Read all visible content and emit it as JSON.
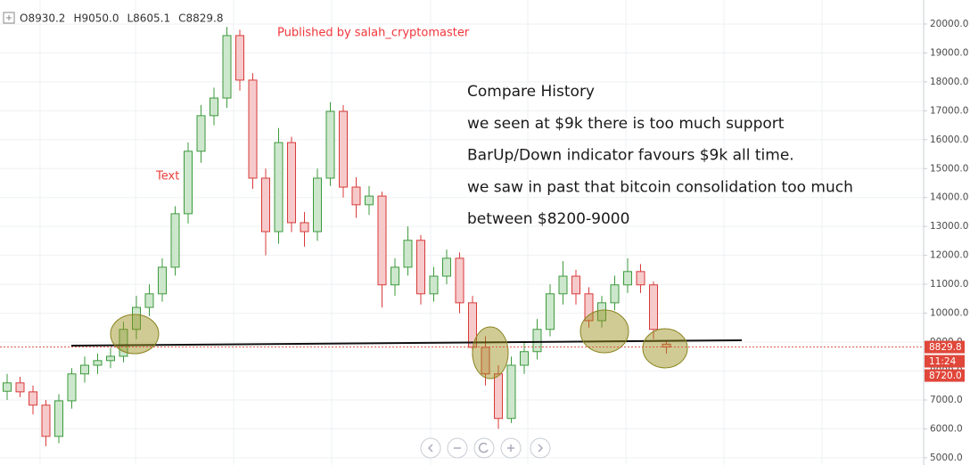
{
  "chart_data": {
    "type": "candlestick",
    "ohlc_legend": [
      "O8930.2",
      "H9050.0",
      "L8605.1",
      "C8829.8"
    ],
    "published": "Published by salah_cryptomaster",
    "annotations": [
      "Compare History",
      "we seen at $9k there is too much support",
      "BarUp/Down indicator favours $9k all time.",
      "we saw in past that bitcoin consolidation too much",
      "between $8200-9000"
    ],
    "marker_text": "Text",
    "price_tags": [
      "8829.8",
      "11:24",
      "8720.0"
    ],
    "up_color": "#3d9a3d",
    "down_color": "#d83a3a",
    "open": [
      7300,
      7590,
      7280,
      6820,
      5740,
      6970,
      7900,
      8200,
      8360,
      8510,
      9440,
      10200,
      10670,
      11590,
      13440,
      15600,
      16830,
      17440,
      19600,
      18060,
      14670,
      12820,
      15900,
      13130,
      12820,
      14670,
      16980,
      14360,
      13750,
      14050,
      10980,
      11590,
      12520,
      10670,
      11280,
      11900,
      10360,
      8820,
      7900,
      6360,
      8200,
      8670,
      9440,
      10670,
      11280,
      10670,
      9740,
      10360,
      10980,
      11440,
      10980,
      8930.2
    ],
    "high": [
      7900,
      7800,
      7500,
      7000,
      7200,
      8100,
      8500,
      8600,
      8800,
      9700,
      10600,
      11000,
      11900,
      13700,
      15900,
      17200,
      17800,
      19900,
      19800,
      18300,
      15000,
      16400,
      16100,
      13500,
      15000,
      17300,
      17200,
      14700,
      14400,
      14200,
      11900,
      13000,
      12700,
      11600,
      12200,
      12100,
      10600,
      9200,
      8200,
      8500,
      9000,
      9800,
      11000,
      11800,
      11500,
      10900,
      10600,
      11300,
      11900,
      11700,
      11100,
      9050
    ],
    "low": [
      7000,
      7100,
      6500,
      5400,
      5500,
      6700,
      7600,
      7900,
      8100,
      8300,
      9100,
      9900,
      10400,
      11300,
      13100,
      15200,
      16500,
      17100,
      17700,
      14300,
      12000,
      12400,
      12800,
      12300,
      12500,
      14400,
      14000,
      13300,
      13400,
      10200,
      10600,
      11300,
      10300,
      10400,
      11000,
      10000,
      8500,
      7500,
      6000,
      6200,
      7900,
      8400,
      9200,
      10300,
      10300,
      9500,
      9500,
      10100,
      10700,
      10700,
      9100,
      8605.1
    ],
    "close": [
      7590,
      7280,
      6820,
      5740,
      6970,
      7900,
      8200,
      8360,
      8510,
      9440,
      10200,
      10670,
      11590,
      13440,
      15600,
      16830,
      17440,
      19600,
      18060,
      14670,
      12820,
      15900,
      13130,
      12820,
      14670,
      16980,
      14360,
      13750,
      14050,
      10980,
      11590,
      12520,
      10670,
      11280,
      11900,
      10360,
      8820,
      7900,
      6360,
      8200,
      8670,
      9440,
      10670,
      11280,
      10670,
      9740,
      10360,
      10980,
      11440,
      10980,
      9440,
      8829.8
    ],
    "ylim": [
      4750,
      20830
    ],
    "yticks": [
      {
        "value": 5000,
        "label": "5000.0"
      },
      {
        "value": 6000,
        "label": "6000.0"
      },
      {
        "value": 7000,
        "label": "7000.0"
      },
      {
        "value": 8000,
        "label": "8000.0"
      },
      {
        "value": 9000,
        "label": "9000.0"
      },
      {
        "value": 10000,
        "label": "10000.0"
      },
      {
        "value": 11000,
        "label": "11000.0"
      },
      {
        "value": 12000,
        "label": "12000.0"
      },
      {
        "value": 13000,
        "label": "13000.0"
      },
      {
        "value": 14000,
        "label": "14000.0"
      },
      {
        "value": 15000,
        "label": "15000.0"
      },
      {
        "value": 16000,
        "label": "16000.0"
      },
      {
        "value": 17000,
        "label": "17000.0"
      },
      {
        "value": 18000,
        "label": "18000.0"
      },
      {
        "value": 19000,
        "label": "19000.0"
      },
      {
        "value": 20000,
        "label": "20000.0"
      }
    ],
    "grid": true
  }
}
